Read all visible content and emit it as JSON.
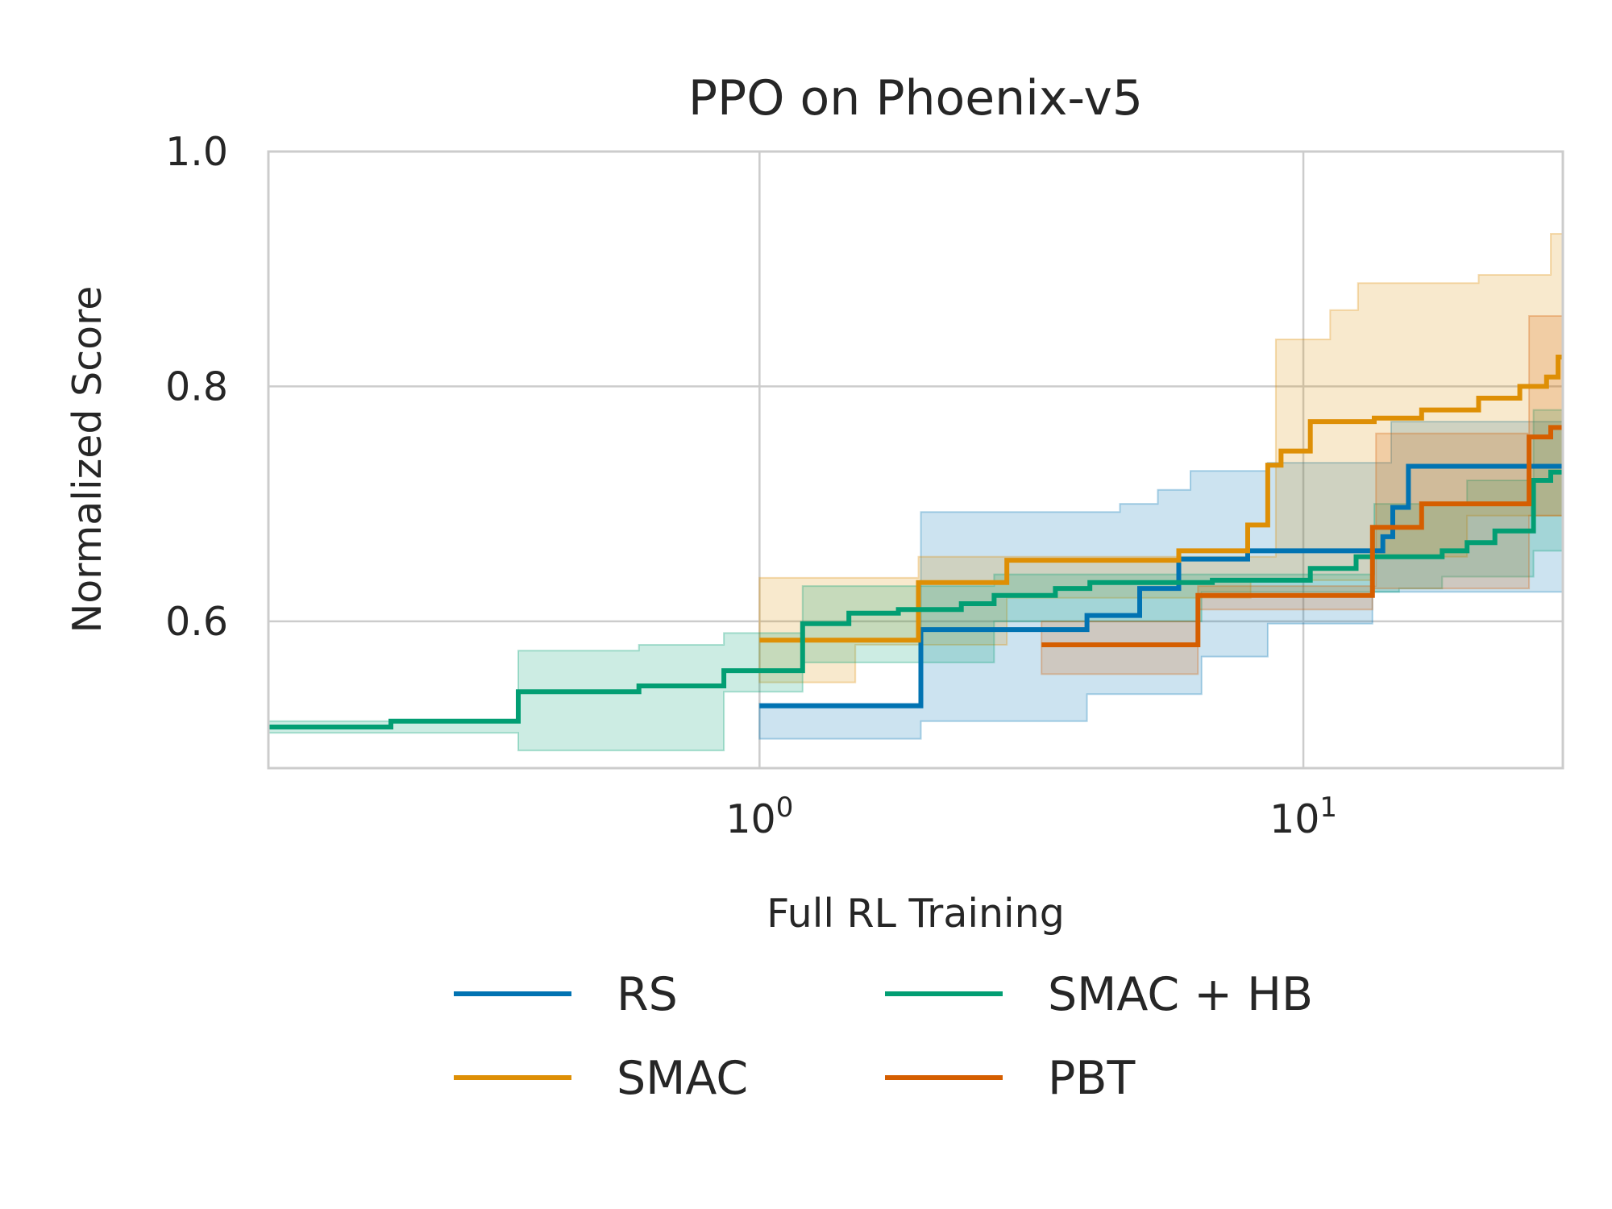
{
  "chart_data": {
    "type": "line",
    "title": "PPO on Phoenix-v5",
    "xlabel": "Full RL Training",
    "ylabel": "Normalized Score",
    "xscale": "log",
    "xlim": [
      0.125,
      30
    ],
    "ylim": [
      0.475,
      1.0
    ],
    "yticks": [
      "0.6",
      "0.8",
      "1.0"
    ],
    "xticks": [
      {
        "base": "10",
        "exp": "0",
        "value": 1
      },
      {
        "base": "10",
        "exp": "1",
        "value": 10
      }
    ],
    "grid": true,
    "legend_position": "bottom",
    "series": [
      {
        "name": "RS",
        "color": "#0173b2",
        "points": [
          [
            1.0,
            0.528
          ],
          [
            1.98,
            0.528
          ],
          [
            1.98,
            0.593
          ],
          [
            4.0,
            0.593
          ],
          [
            4.0,
            0.605
          ],
          [
            5.0,
            0.605
          ],
          [
            5.0,
            0.628
          ],
          [
            5.9,
            0.628
          ],
          [
            5.9,
            0.653
          ],
          [
            7.9,
            0.653
          ],
          [
            7.9,
            0.66
          ],
          [
            14.0,
            0.66
          ],
          [
            14.0,
            0.672
          ],
          [
            14.6,
            0.672
          ],
          [
            14.6,
            0.697
          ],
          [
            15.6,
            0.697
          ],
          [
            15.6,
            0.732
          ],
          [
            30.0,
            0.732
          ]
        ],
        "band_upper": [
          [
            1.0,
            0.53
          ],
          [
            1.98,
            0.53
          ],
          [
            1.98,
            0.693
          ],
          [
            4.6,
            0.693
          ],
          [
            4.6,
            0.7
          ],
          [
            5.4,
            0.7
          ],
          [
            5.4,
            0.712
          ],
          [
            6.2,
            0.712
          ],
          [
            6.2,
            0.728
          ],
          [
            8.6,
            0.728
          ],
          [
            8.6,
            0.735
          ],
          [
            14.5,
            0.735
          ],
          [
            14.5,
            0.77
          ],
          [
            30.0,
            0.77
          ]
        ],
        "band_lower": [
          [
            1.0,
            0.5
          ],
          [
            1.98,
            0.5
          ],
          [
            1.98,
            0.515
          ],
          [
            4.0,
            0.515
          ],
          [
            4.0,
            0.538
          ],
          [
            6.5,
            0.538
          ],
          [
            6.5,
            0.57
          ],
          [
            8.6,
            0.57
          ],
          [
            8.6,
            0.598
          ],
          [
            13.4,
            0.598
          ],
          [
            13.4,
            0.625
          ],
          [
            30.0,
            0.625
          ]
        ]
      },
      {
        "name": "SMAC",
        "color": "#de8f05",
        "points": [
          [
            1.0,
            0.584
          ],
          [
            1.96,
            0.584
          ],
          [
            1.96,
            0.633
          ],
          [
            2.85,
            0.633
          ],
          [
            2.85,
            0.652
          ],
          [
            5.9,
            0.652
          ],
          [
            5.9,
            0.66
          ],
          [
            7.9,
            0.66
          ],
          [
            7.9,
            0.682
          ],
          [
            8.6,
            0.682
          ],
          [
            8.6,
            0.733
          ],
          [
            9.1,
            0.733
          ],
          [
            9.1,
            0.745
          ],
          [
            10.3,
            0.745
          ],
          [
            10.3,
            0.77
          ],
          [
            13.5,
            0.77
          ],
          [
            13.5,
            0.773
          ],
          [
            16.5,
            0.773
          ],
          [
            16.5,
            0.78
          ],
          [
            21.0,
            0.78
          ],
          [
            21.0,
            0.79
          ],
          [
            25.0,
            0.79
          ],
          [
            25.0,
            0.8
          ],
          [
            28.0,
            0.8
          ],
          [
            28.0,
            0.808
          ],
          [
            29.4,
            0.808
          ],
          [
            29.4,
            0.825
          ],
          [
            30.0,
            0.825
          ]
        ],
        "band_upper": [
          [
            1.0,
            0.637
          ],
          [
            1.96,
            0.637
          ],
          [
            1.96,
            0.655
          ],
          [
            8.9,
            0.655
          ],
          [
            8.9,
            0.84
          ],
          [
            11.2,
            0.84
          ],
          [
            11.2,
            0.865
          ],
          [
            12.6,
            0.865
          ],
          [
            12.6,
            0.888
          ],
          [
            21.0,
            0.888
          ],
          [
            21.0,
            0.895
          ],
          [
            28.5,
            0.895
          ],
          [
            28.5,
            0.93
          ],
          [
            30.0,
            0.93
          ]
        ],
        "band_lower": [
          [
            1.0,
            0.548
          ],
          [
            1.5,
            0.548
          ],
          [
            1.5,
            0.58
          ],
          [
            2.85,
            0.58
          ],
          [
            2.85,
            0.62
          ],
          [
            8.0,
            0.62
          ],
          [
            8.0,
            0.635
          ],
          [
            13.4,
            0.635
          ],
          [
            13.4,
            0.655
          ],
          [
            20.0,
            0.655
          ],
          [
            20.0,
            0.69
          ],
          [
            30.0,
            0.69
          ]
        ]
      },
      {
        "name": "SMAC + HB",
        "color": "#029e73",
        "points": [
          [
            0.125,
            0.51
          ],
          [
            0.21,
            0.51
          ],
          [
            0.21,
            0.515
          ],
          [
            0.36,
            0.515
          ],
          [
            0.36,
            0.54
          ],
          [
            0.6,
            0.54
          ],
          [
            0.6,
            0.545
          ],
          [
            0.86,
            0.545
          ],
          [
            0.86,
            0.558
          ],
          [
            1.2,
            0.558
          ],
          [
            1.2,
            0.598
          ],
          [
            1.46,
            0.598
          ],
          [
            1.46,
            0.607
          ],
          [
            1.8,
            0.607
          ],
          [
            1.8,
            0.61
          ],
          [
            2.35,
            0.61
          ],
          [
            2.35,
            0.615
          ],
          [
            2.7,
            0.615
          ],
          [
            2.7,
            0.622
          ],
          [
            3.5,
            0.622
          ],
          [
            3.5,
            0.628
          ],
          [
            4.05,
            0.628
          ],
          [
            4.05,
            0.633
          ],
          [
            6.8,
            0.633
          ],
          [
            6.8,
            0.635
          ],
          [
            10.3,
            0.635
          ],
          [
            10.3,
            0.645
          ],
          [
            12.5,
            0.645
          ],
          [
            12.5,
            0.655
          ],
          [
            18.0,
            0.655
          ],
          [
            18.0,
            0.66
          ],
          [
            20.0,
            0.66
          ],
          [
            20.0,
            0.667
          ],
          [
            22.5,
            0.667
          ],
          [
            22.5,
            0.677
          ],
          [
            26.5,
            0.677
          ],
          [
            26.5,
            0.72
          ],
          [
            28.5,
            0.72
          ],
          [
            28.5,
            0.727
          ],
          [
            30.0,
            0.727
          ]
        ],
        "band_upper": [
          [
            0.125,
            0.515
          ],
          [
            0.36,
            0.515
          ],
          [
            0.36,
            0.575
          ],
          [
            0.6,
            0.575
          ],
          [
            0.6,
            0.58
          ],
          [
            0.86,
            0.58
          ],
          [
            0.86,
            0.59
          ],
          [
            1.2,
            0.59
          ],
          [
            1.2,
            0.63
          ],
          [
            2.7,
            0.63
          ],
          [
            2.7,
            0.64
          ],
          [
            13.5,
            0.64
          ],
          [
            13.5,
            0.7
          ],
          [
            20.0,
            0.7
          ],
          [
            20.0,
            0.72
          ],
          [
            26.5,
            0.72
          ],
          [
            26.5,
            0.78
          ],
          [
            30.0,
            0.78
          ]
        ],
        "band_lower": [
          [
            0.125,
            0.505
          ],
          [
            0.36,
            0.505
          ],
          [
            0.36,
            0.49
          ],
          [
            0.86,
            0.49
          ],
          [
            0.86,
            0.54
          ],
          [
            1.2,
            0.54
          ],
          [
            1.2,
            0.565
          ],
          [
            2.7,
            0.565
          ],
          [
            2.7,
            0.6
          ],
          [
            6.5,
            0.6
          ],
          [
            6.5,
            0.625
          ],
          [
            15.0,
            0.625
          ],
          [
            15.0,
            0.628
          ],
          [
            18.0,
            0.628
          ],
          [
            18.0,
            0.638
          ],
          [
            26.5,
            0.638
          ],
          [
            26.5,
            0.66
          ],
          [
            30.0,
            0.66
          ]
        ]
      },
      {
        "name": "PBT",
        "color": "#d55e00",
        "points": [
          [
            3.3,
            0.58
          ],
          [
            6.4,
            0.58
          ],
          [
            6.4,
            0.622
          ],
          [
            13.4,
            0.622
          ],
          [
            13.4,
            0.68
          ],
          [
            16.5,
            0.68
          ],
          [
            16.5,
            0.7
          ],
          [
            26.0,
            0.7
          ],
          [
            26.0,
            0.757
          ],
          [
            28.5,
            0.757
          ],
          [
            28.5,
            0.765
          ],
          [
            30.0,
            0.765
          ]
        ],
        "band_upper": [
          [
            3.3,
            0.6
          ],
          [
            6.4,
            0.6
          ],
          [
            6.4,
            0.63
          ],
          [
            13.6,
            0.63
          ],
          [
            13.6,
            0.76
          ],
          [
            26.0,
            0.76
          ],
          [
            26.0,
            0.86
          ],
          [
            30.0,
            0.86
          ]
        ],
        "band_lower": [
          [
            3.3,
            0.555
          ],
          [
            6.4,
            0.555
          ],
          [
            6.4,
            0.61
          ],
          [
            13.4,
            0.61
          ],
          [
            13.4,
            0.628
          ],
          [
            26.0,
            0.628
          ],
          [
            26.0,
            0.69
          ],
          [
            30.0,
            0.69
          ]
        ]
      }
    ]
  }
}
